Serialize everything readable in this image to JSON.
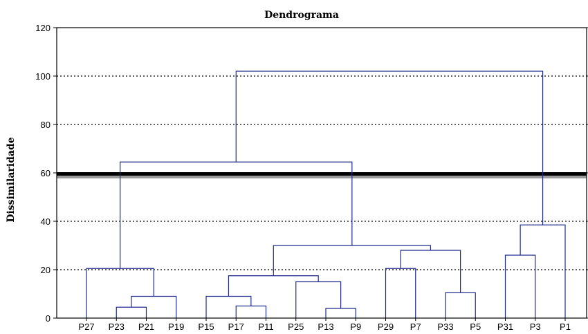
{
  "chart_data": {
    "type": "dendrogram",
    "title": "Dendrograma",
    "xlabel": "",
    "ylabel": "Dissimilaridade",
    "ylim": [
      0,
      120
    ],
    "yticks": [
      0,
      20,
      40,
      60,
      80,
      100,
      120
    ],
    "grid": "horizontal-dotted",
    "cut_line": 59,
    "colors": {
      "tree": "#1f2a8c",
      "cut_line": "#000000",
      "cut_line_shadow": "#9a9a9a",
      "grid": "#000000"
    },
    "leaves": [
      "P27",
      "P23",
      "P21",
      "P19",
      "P15",
      "P17",
      "P11",
      "P25",
      "P13",
      "P9",
      "P29",
      "P7",
      "P33",
      "P5",
      "P31",
      "P3",
      "P1"
    ],
    "merges": [
      {
        "left": "P23",
        "right": "P21",
        "height": 4.5
      },
      {
        "left": "P23,P21",
        "right": "P19",
        "height": 9
      },
      {
        "left": "P27",
        "right": "P23,P21,P19",
        "height": 20.5
      },
      {
        "left": "P17",
        "right": "P11",
        "height": 5
      },
      {
        "left": "P15",
        "right": "P17,P11",
        "height": 9
      },
      {
        "left": "P13",
        "right": "P9",
        "height": 4
      },
      {
        "left": "P25",
        "right": "P13,P9",
        "height": 15
      },
      {
        "left": "P15,P17,P11",
        "right": "P25,P13,P9",
        "height": 17.5
      },
      {
        "left": "P29",
        "right": "P7",
        "height": 20.5
      },
      {
        "left": "P33",
        "right": "P5",
        "height": 10.5
      },
      {
        "left": "P29,P7",
        "right": "P33,P5",
        "height": 28
      },
      {
        "left": "P15..P9",
        "right": "P29..P5",
        "height": 30
      },
      {
        "left": "P27..P19",
        "right": "P15..P5",
        "height": 64.5
      },
      {
        "left": "P31",
        "right": "P3",
        "height": 26
      },
      {
        "left": "P31,P3",
        "right": "P1",
        "height": 38.5
      },
      {
        "left": "P27..P5",
        "right": "P31,P3,P1",
        "height": 102
      }
    ]
  }
}
